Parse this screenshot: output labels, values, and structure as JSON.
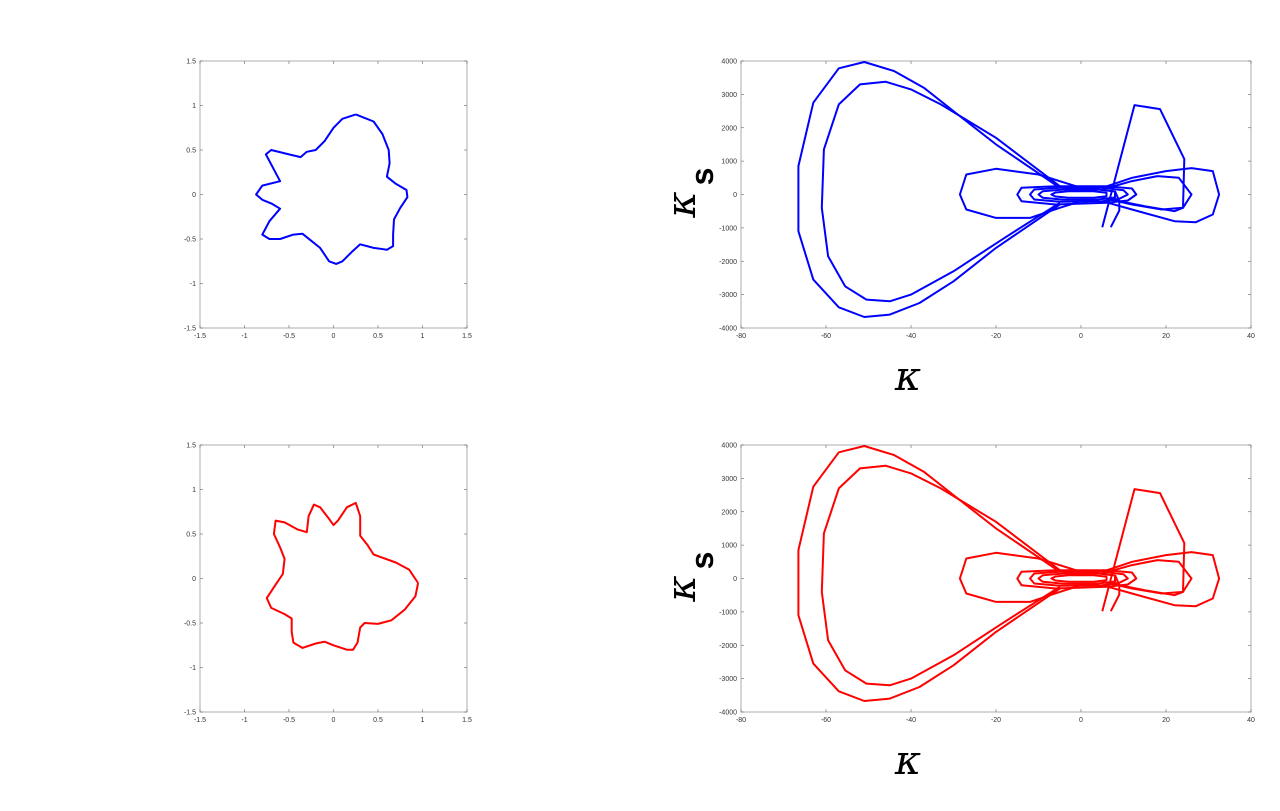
{
  "chart_data": [
    {
      "type": "line",
      "panel": "top-left",
      "color": "#0000ff",
      "xlim": [
        -1.5,
        1.5
      ],
      "ylim": [
        -1.5,
        1.5
      ],
      "xticks": [
        "-1.5",
        "-1",
        "-0.5",
        "0",
        "0.5",
        "1",
        "1.5"
      ],
      "yticks": [
        "-1.5",
        "-1",
        "-0.5",
        "0",
        "0.5",
        "1",
        "1.5"
      ],
      "xlabel": "",
      "ylabel": "",
      "grid": false,
      "points": [
        [
          0.25,
          0.9
        ],
        [
          0.45,
          0.82
        ],
        [
          0.55,
          0.68
        ],
        [
          0.62,
          0.5
        ],
        [
          0.63,
          0.35
        ],
        [
          0.6,
          0.2
        ],
        [
          0.7,
          0.12
        ],
        [
          0.82,
          0.05
        ],
        [
          0.83,
          -0.03
        ],
        [
          0.75,
          -0.15
        ],
        [
          0.68,
          -0.28
        ],
        [
          0.67,
          -0.45
        ],
        [
          0.67,
          -0.58
        ],
        [
          0.6,
          -0.62
        ],
        [
          0.45,
          -0.6
        ],
        [
          0.3,
          -0.56
        ],
        [
          0.2,
          -0.65
        ],
        [
          0.1,
          -0.75
        ],
        [
          0.03,
          -0.78
        ],
        [
          -0.05,
          -0.75
        ],
        [
          -0.15,
          -0.6
        ],
        [
          -0.25,
          -0.52
        ],
        [
          -0.35,
          -0.44
        ],
        [
          -0.45,
          -0.45
        ],
        [
          -0.6,
          -0.5
        ],
        [
          -0.72,
          -0.5
        ],
        [
          -0.8,
          -0.45
        ],
        [
          -0.72,
          -0.3
        ],
        [
          -0.6,
          -0.16
        ],
        [
          -0.7,
          -0.1
        ],
        [
          -0.8,
          -0.06
        ],
        [
          -0.87,
          0
        ],
        [
          -0.8,
          0.1
        ],
        [
          -0.6,
          0.15
        ],
        [
          -0.68,
          0.3
        ],
        [
          -0.76,
          0.45
        ],
        [
          -0.7,
          0.5
        ],
        [
          -0.5,
          0.45
        ],
        [
          -0.37,
          0.42
        ],
        [
          -0.3,
          0.48
        ],
        [
          -0.2,
          0.5
        ],
        [
          -0.1,
          0.6
        ],
        [
          0.0,
          0.75
        ],
        [
          0.1,
          0.85
        ],
        [
          0.25,
          0.9
        ]
      ]
    },
    {
      "type": "line",
      "panel": "top-right",
      "color": "#0000ff",
      "xlim": [
        -80,
        40
      ],
      "ylim": [
        -4000,
        4000
      ],
      "xticks": [
        "-80",
        "-60",
        "-40",
        "-20",
        "0",
        "20",
        "40"
      ],
      "yticks": [
        "-4000",
        "-3000",
        "-2000",
        "-1000",
        "0",
        "1000",
        "2000",
        "3000",
        "4000"
      ],
      "xlabel": "κ",
      "ylabel": "κ",
      "ylabel_sub": "s",
      "grid": false,
      "paths": [
        [
          [
            -5,
            200
          ],
          [
            -20,
            1500
          ],
          [
            -30,
            2500
          ],
          [
            -37,
            3200
          ],
          [
            -44,
            3700
          ],
          [
            -51,
            3970
          ],
          [
            -57,
            3780
          ],
          [
            -63,
            2750
          ],
          [
            -66.5,
            850
          ],
          [
            -66.5,
            -1100
          ],
          [
            -63,
            -2550
          ],
          [
            -57,
            -3380
          ],
          [
            -51,
            -3670
          ],
          [
            -45,
            -3600
          ],
          [
            -38,
            -3250
          ],
          [
            -30,
            -2600
          ],
          [
            -20,
            -1600
          ],
          [
            -5,
            -300
          ]
        ],
        [
          [
            -5,
            250
          ],
          [
            -20,
            1700
          ],
          [
            -33,
            2700
          ],
          [
            -40,
            3150
          ],
          [
            -46,
            3380
          ],
          [
            -52,
            3300
          ],
          [
            -57,
            2700
          ],
          [
            -60.5,
            1350
          ],
          [
            -61,
            -400
          ],
          [
            -59.5,
            -1850
          ],
          [
            -55.5,
            -2750
          ],
          [
            -50.5,
            -3150
          ],
          [
            -45,
            -3200
          ],
          [
            -40,
            -3000
          ],
          [
            -30,
            -2300
          ],
          [
            -18,
            -1300
          ],
          [
            -5,
            -250
          ]
        ],
        [
          [
            5,
            -980
          ],
          [
            12.6,
            2680
          ],
          [
            18.6,
            2560
          ],
          [
            24.3,
            1060
          ],
          [
            24,
            -400
          ],
          [
            22,
            -500
          ],
          [
            15,
            -350
          ],
          [
            5,
            -100
          ]
        ],
        [
          [
            7,
            -980
          ],
          [
            9,
            -480
          ],
          [
            9,
            -200
          ],
          [
            8,
            100
          ]
        ],
        [
          [
            5,
            200
          ],
          [
            12,
            500
          ],
          [
            20,
            700
          ],
          [
            26,
            790
          ],
          [
            31,
            700
          ],
          [
            32.5,
            0
          ],
          [
            31,
            -600
          ],
          [
            27,
            -830
          ],
          [
            22,
            -800
          ],
          [
            12,
            -450
          ],
          [
            5,
            -200
          ]
        ],
        [
          [
            5,
            150
          ],
          [
            12,
            400
          ],
          [
            18,
            550
          ],
          [
            23,
            500
          ],
          [
            26,
            0
          ],
          [
            24,
            -400
          ],
          [
            19,
            -450
          ],
          [
            12,
            -300
          ],
          [
            5,
            -100
          ]
        ],
        [
          [
            0,
            200
          ],
          [
            -10,
            600
          ],
          [
            -20,
            770
          ],
          [
            -27,
            600
          ],
          [
            -28.5,
            0
          ],
          [
            -27,
            -450
          ],
          [
            -20,
            -700
          ],
          [
            -12,
            -700
          ],
          [
            -5,
            -400
          ],
          [
            0,
            -200
          ]
        ],
        [
          [
            -6,
            250
          ],
          [
            6,
            250
          ],
          [
            12,
            180
          ],
          [
            13,
            0
          ],
          [
            11,
            -180
          ],
          [
            6,
            -250
          ],
          [
            -6,
            -300
          ],
          [
            -14,
            -200
          ],
          [
            -15,
            0
          ],
          [
            -14,
            200
          ],
          [
            -6,
            250
          ]
        ],
        [
          [
            -5,
            200
          ],
          [
            5,
            200
          ],
          [
            10,
            130
          ],
          [
            11,
            0
          ],
          [
            9,
            -130
          ],
          [
            5,
            -200
          ],
          [
            -5,
            -220
          ],
          [
            -11,
            -150
          ],
          [
            -12,
            0
          ],
          [
            -11,
            150
          ],
          [
            -5,
            200
          ]
        ],
        [
          [
            -4,
            150
          ],
          [
            4,
            150
          ],
          [
            8,
            90
          ],
          [
            8,
            -90
          ],
          [
            4,
            -150
          ],
          [
            -4,
            -160
          ],
          [
            -9,
            -100
          ],
          [
            -10,
            0
          ],
          [
            -9,
            100
          ],
          [
            -4,
            150
          ]
        ],
        [
          [
            -3,
            100
          ],
          [
            3,
            100
          ],
          [
            6,
            50
          ],
          [
            6,
            -50
          ],
          [
            3,
            -100
          ],
          [
            -3,
            -100
          ],
          [
            -6,
            -60
          ],
          [
            -7,
            0
          ],
          [
            -6,
            60
          ],
          [
            -3,
            100
          ]
        ]
      ]
    },
    {
      "type": "line",
      "panel": "bottom-left",
      "color": "#ff0000",
      "xlim": [
        -1.5,
        1.5
      ],
      "ylim": [
        -1.5,
        1.5
      ],
      "xticks": [
        "-1.5",
        "-1",
        "-0.5",
        "0",
        "0.5",
        "1",
        "1.5"
      ],
      "yticks": [
        "-1.5",
        "-1",
        "-0.5",
        "0",
        "0.5",
        "1",
        "1.5"
      ],
      "xlabel": "",
      "ylabel": "",
      "grid": false,
      "points": [
        [
          0.95,
          -0.05
        ],
        [
          0.92,
          -0.2
        ],
        [
          0.8,
          -0.35
        ],
        [
          0.65,
          -0.47
        ],
        [
          0.5,
          -0.51
        ],
        [
          0.35,
          -0.5
        ],
        [
          0.3,
          -0.55
        ],
        [
          0.27,
          -0.72
        ],
        [
          0.22,
          -0.8
        ],
        [
          0.15,
          -0.8
        ],
        [
          0.0,
          -0.75
        ],
        [
          -0.1,
          -0.71
        ],
        [
          -0.2,
          -0.73
        ],
        [
          -0.35,
          -0.78
        ],
        [
          -0.45,
          -0.72
        ],
        [
          -0.47,
          -0.6
        ],
        [
          -0.47,
          -0.45
        ],
        [
          -0.55,
          -0.4
        ],
        [
          -0.7,
          -0.33
        ],
        [
          -0.75,
          -0.22
        ],
        [
          -0.65,
          -0.07
        ],
        [
          -0.57,
          0.05
        ],
        [
          -0.55,
          0.22
        ],
        [
          -0.6,
          0.35
        ],
        [
          -0.67,
          0.5
        ],
        [
          -0.65,
          0.65
        ],
        [
          -0.55,
          0.63
        ],
        [
          -0.4,
          0.55
        ],
        [
          -0.3,
          0.52
        ],
        [
          -0.28,
          0.7
        ],
        [
          -0.22,
          0.83
        ],
        [
          -0.15,
          0.8
        ],
        [
          -0.05,
          0.67
        ],
        [
          0.0,
          0.6
        ],
        [
          0.05,
          0.65
        ],
        [
          0.15,
          0.8
        ],
        [
          0.25,
          0.85
        ],
        [
          0.3,
          0.7
        ],
        [
          0.3,
          0.48
        ],
        [
          0.38,
          0.38
        ],
        [
          0.45,
          0.27
        ],
        [
          0.7,
          0.18
        ],
        [
          0.85,
          0.1
        ],
        [
          0.95,
          -0.05
        ]
      ]
    },
    {
      "type": "line",
      "panel": "bottom-right",
      "color": "#ff0000",
      "xlim": [
        -80,
        40
      ],
      "ylim": [
        -4000,
        4000
      ],
      "xticks": [
        "-80",
        "-60",
        "-40",
        "-20",
        "0",
        "20",
        "40"
      ],
      "yticks": [
        "-4000",
        "-3000",
        "-2000",
        "-1000",
        "0",
        "1000",
        "2000",
        "3000",
        "4000"
      ],
      "xlabel": "κ",
      "ylabel": "κ",
      "ylabel_sub": "s",
      "grid": false,
      "paths_same_as_panel": "top-right"
    }
  ]
}
